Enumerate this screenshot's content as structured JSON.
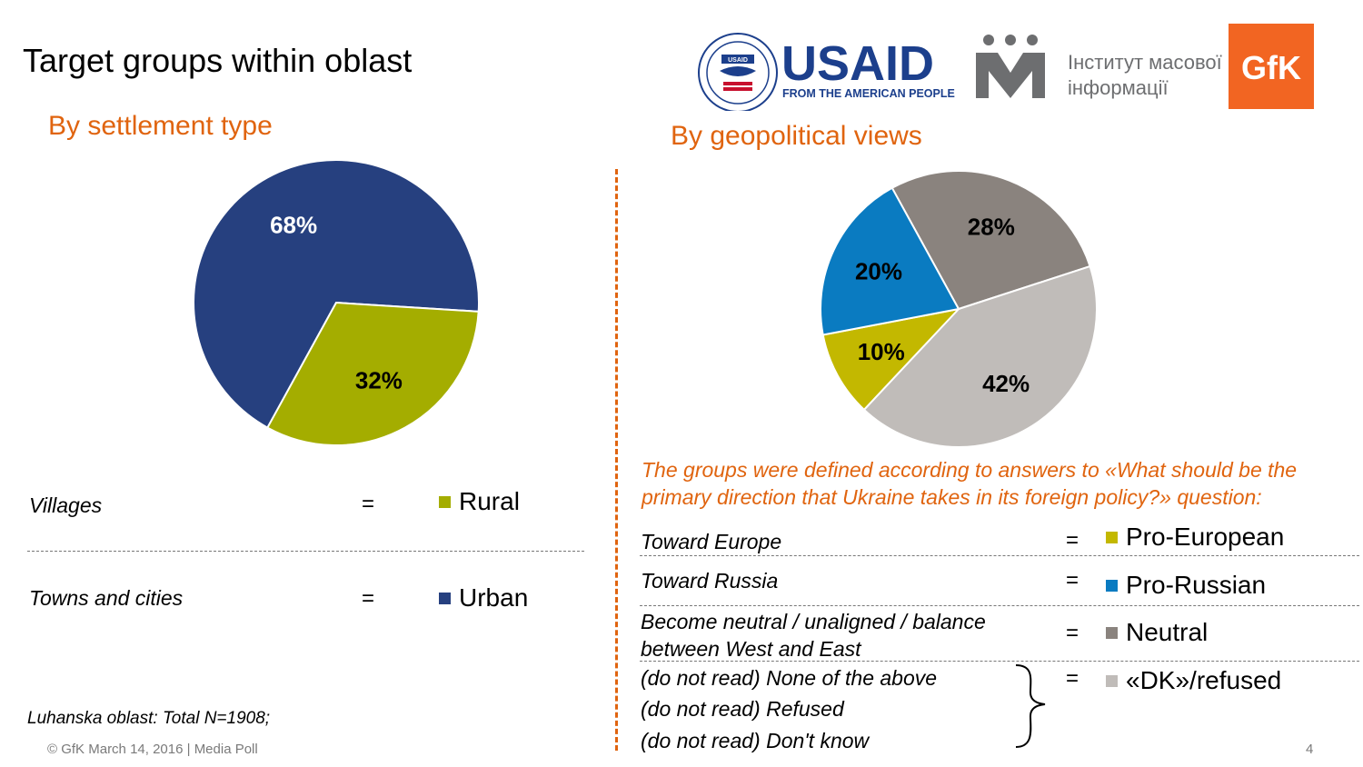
{
  "page": {
    "title": "Target groups within oblast",
    "page_number": "4",
    "footer": "© GfK March 14, 2016 | Media Poll",
    "sample_note": "Luhanska oblast: Total N=1908;"
  },
  "logos": {
    "usaid_seal": "USAID",
    "usaid_name": "USAID",
    "usaid_tagline": "FROM THE AMERICAN PEOPLE",
    "imi_line1": "Інститут масової",
    "imi_line2": "інформації",
    "gfk": "GfK",
    "colors": {
      "usaid_blue": "#1c3f8c",
      "usaid_red": "#c8102e",
      "imi_gray": "#6d6e70",
      "gfk_orange": "#f26522"
    }
  },
  "left": {
    "subtitle": "By settlement type",
    "definitions": [
      {
        "text": "Villages",
        "eq": "=",
        "group": "Rural",
        "color": "#a4ad00"
      },
      {
        "text": "Towns and cities",
        "eq": "=",
        "group": "Urban",
        "color": "#26407f"
      }
    ]
  },
  "right": {
    "subtitle": "By geopolitical views",
    "note": "The groups were defined according to answers to «What should be the primary direction that Ukraine takes in its foreign policy?» question:",
    "definitions": [
      {
        "text": "Toward Europe",
        "eq": "=",
        "group": "Pro-European",
        "color": "#c3b800"
      },
      {
        "text": "Toward Russia",
        "eq": "=",
        "group": "Pro-Russian",
        "color": "#0a7bc1"
      },
      {
        "text": "Become neutral / unaligned / balance between West and East",
        "eq": "=",
        "group": "Neutral",
        "color": "#8a837e"
      }
    ],
    "dk": {
      "lines": [
        "(do not read) None of the above",
        "(do not read) Refused",
        "(do not read) Don't know"
      ],
      "eq": "=",
      "group": "«DK»/refused",
      "color": "#c0bcb9"
    }
  },
  "chart_data": [
    {
      "type": "pie",
      "title": "By settlement type",
      "categories": [
        "Urban",
        "Rural"
      ],
      "values": [
        68,
        32
      ],
      "labels": [
        "68%",
        "32%"
      ],
      "colors": [
        "#26407f",
        "#a4ad00"
      ],
      "label_colors": [
        "#ffffff",
        "#000000"
      ]
    },
    {
      "type": "pie",
      "title": "By geopolitical views",
      "categories": [
        "Neutral",
        "«DK»/refused",
        "Pro-European",
        "Pro-Russian"
      ],
      "values": [
        28,
        42,
        10,
        20
      ],
      "labels": [
        "28%",
        "42%",
        "10%",
        "20%"
      ],
      "colors": [
        "#8a837e",
        "#c0bcb9",
        "#c3b800",
        "#0a7bc1"
      ],
      "label_colors": [
        "#000000",
        "#000000",
        "#000000",
        "#000000"
      ]
    }
  ]
}
